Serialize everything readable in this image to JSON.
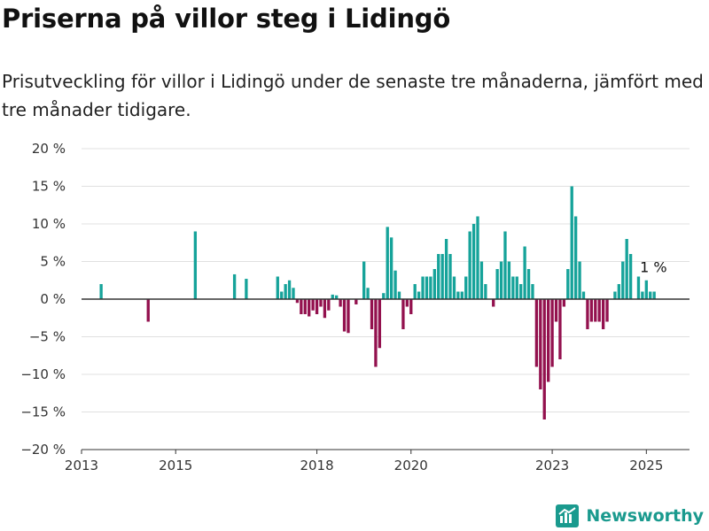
{
  "title": "Priserna på villor steg i Lidingö",
  "subtitle": "Prisutveckling för villor i Lidingö under de senaste tre månaderna, jämfört med tre månader tidigare.",
  "brand": "Newsworthy",
  "colors": {
    "positive": "#16a39a",
    "negative": "#93114e",
    "grid": "#e0e0e0",
    "axis": "#333333",
    "brand": "#1a9a8e"
  },
  "chart_data": {
    "type": "bar",
    "title": "",
    "xlabel": "",
    "ylabel": "",
    "ylim": [
      -20,
      20
    ],
    "xlim": [
      "2013-01",
      "2025-12"
    ],
    "grid": true,
    "y_ticks": [
      20,
      15,
      10,
      5,
      0,
      -5,
      -10,
      -15,
      -20
    ],
    "y_tick_labels": [
      "20 %",
      "15 %",
      "10 %",
      "5 %",
      "0 %",
      "−5 %",
      "−10 %",
      "−15 %",
      "−20 %"
    ],
    "x_ticks": [
      "2013-01",
      "2015-01",
      "2018-01",
      "2020-01",
      "2023-01",
      "2025-01"
    ],
    "x_tick_labels": [
      "2013",
      "2015",
      "2018",
      "2020",
      "2023",
      "2025"
    ],
    "series": [
      {
        "values": [
          {
            "x": "2013-06",
            "y": 2
          },
          {
            "x": "2014-06",
            "y": -3
          },
          {
            "x": "2015-06",
            "y": 9
          },
          {
            "x": "2016-04",
            "y": 3.3
          },
          {
            "x": "2016-07",
            "y": 2.7
          },
          {
            "x": "2017-03",
            "y": 3
          },
          {
            "x": "2017-04",
            "y": 1
          },
          {
            "x": "2017-05",
            "y": 2
          },
          {
            "x": "2017-06",
            "y": 2.5
          },
          {
            "x": "2017-07",
            "y": 1.5
          },
          {
            "x": "2017-08",
            "y": -0.5
          },
          {
            "x": "2017-09",
            "y": -2
          },
          {
            "x": "2017-10",
            "y": -2
          },
          {
            "x": "2017-11",
            "y": -2.3
          },
          {
            "x": "2017-12",
            "y": -1.5
          },
          {
            "x": "2018-01",
            "y": -2
          },
          {
            "x": "2018-02",
            "y": -1
          },
          {
            "x": "2018-03",
            "y": -2.5
          },
          {
            "x": "2018-04",
            "y": -1.5
          },
          {
            "x": "2018-05",
            "y": 0.6
          },
          {
            "x": "2018-06",
            "y": 0.5
          },
          {
            "x": "2018-07",
            "y": -1
          },
          {
            "x": "2018-08",
            "y": -4.3
          },
          {
            "x": "2018-09",
            "y": -4.5
          },
          {
            "x": "2018-11",
            "y": -0.7
          },
          {
            "x": "2019-01",
            "y": 5
          },
          {
            "x": "2019-02",
            "y": 1.5
          },
          {
            "x": "2019-03",
            "y": -4
          },
          {
            "x": "2019-04",
            "y": -9
          },
          {
            "x": "2019-05",
            "y": -6.5
          },
          {
            "x": "2019-06",
            "y": 0.8
          },
          {
            "x": "2019-07",
            "y": 9.6
          },
          {
            "x": "2019-08",
            "y": 8.2
          },
          {
            "x": "2019-09",
            "y": 3.8
          },
          {
            "x": "2019-10",
            "y": 1
          },
          {
            "x": "2019-11",
            "y": -4
          },
          {
            "x": "2019-12",
            "y": -1
          },
          {
            "x": "2020-01",
            "y": -2
          },
          {
            "x": "2020-02",
            "y": 2
          },
          {
            "x": "2020-03",
            "y": 1
          },
          {
            "x": "2020-04",
            "y": 3
          },
          {
            "x": "2020-05",
            "y": 3
          },
          {
            "x": "2020-06",
            "y": 3
          },
          {
            "x": "2020-07",
            "y": 4
          },
          {
            "x": "2020-08",
            "y": 6
          },
          {
            "x": "2020-09",
            "y": 6
          },
          {
            "x": "2020-10",
            "y": 8
          },
          {
            "x": "2020-11",
            "y": 6
          },
          {
            "x": "2020-12",
            "y": 3
          },
          {
            "x": "2021-01",
            "y": 1
          },
          {
            "x": "2021-02",
            "y": 1
          },
          {
            "x": "2021-03",
            "y": 3
          },
          {
            "x": "2021-04",
            "y": 9
          },
          {
            "x": "2021-05",
            "y": 10
          },
          {
            "x": "2021-06",
            "y": 11
          },
          {
            "x": "2021-07",
            "y": 5
          },
          {
            "x": "2021-08",
            "y": 2
          },
          {
            "x": "2021-10",
            "y": -1
          },
          {
            "x": "2021-11",
            "y": 4
          },
          {
            "x": "2021-12",
            "y": 5
          },
          {
            "x": "2022-01",
            "y": 9
          },
          {
            "x": "2022-02",
            "y": 5
          },
          {
            "x": "2022-03",
            "y": 3
          },
          {
            "x": "2022-04",
            "y": 3
          },
          {
            "x": "2022-05",
            "y": 2
          },
          {
            "x": "2022-06",
            "y": 7
          },
          {
            "x": "2022-07",
            "y": 4
          },
          {
            "x": "2022-08",
            "y": 2
          },
          {
            "x": "2022-09",
            "y": -9
          },
          {
            "x": "2022-10",
            "y": -12
          },
          {
            "x": "2022-11",
            "y": -16
          },
          {
            "x": "2022-12",
            "y": -11
          },
          {
            "x": "2023-01",
            "y": -9
          },
          {
            "x": "2023-02",
            "y": -3
          },
          {
            "x": "2023-03",
            "y": -8
          },
          {
            "x": "2023-04",
            "y": -1
          },
          {
            "x": "2023-05",
            "y": 4
          },
          {
            "x": "2023-06",
            "y": 15
          },
          {
            "x": "2023-07",
            "y": 11
          },
          {
            "x": "2023-08",
            "y": 5
          },
          {
            "x": "2023-09",
            "y": 1
          },
          {
            "x": "2023-10",
            "y": -4
          },
          {
            "x": "2023-11",
            "y": -3
          },
          {
            "x": "2023-12",
            "y": -3
          },
          {
            "x": "2024-01",
            "y": -3
          },
          {
            "x": "2024-02",
            "y": -4
          },
          {
            "x": "2024-03",
            "y": -3
          },
          {
            "x": "2024-05",
            "y": 1
          },
          {
            "x": "2024-06",
            "y": 2
          },
          {
            "x": "2024-07",
            "y": 5
          },
          {
            "x": "2024-08",
            "y": 8
          },
          {
            "x": "2024-09",
            "y": 6
          },
          {
            "x": "2024-11",
            "y": 3
          },
          {
            "x": "2024-12",
            "y": 1
          },
          {
            "x": "2025-01",
            "y": 2.5
          },
          {
            "x": "2025-02",
            "y": 1
          },
          {
            "x": "2025-03",
            "y": 1
          }
        ]
      }
    ],
    "annotation": {
      "text": "1 %",
      "x": "2025-03",
      "y": 1
    }
  }
}
